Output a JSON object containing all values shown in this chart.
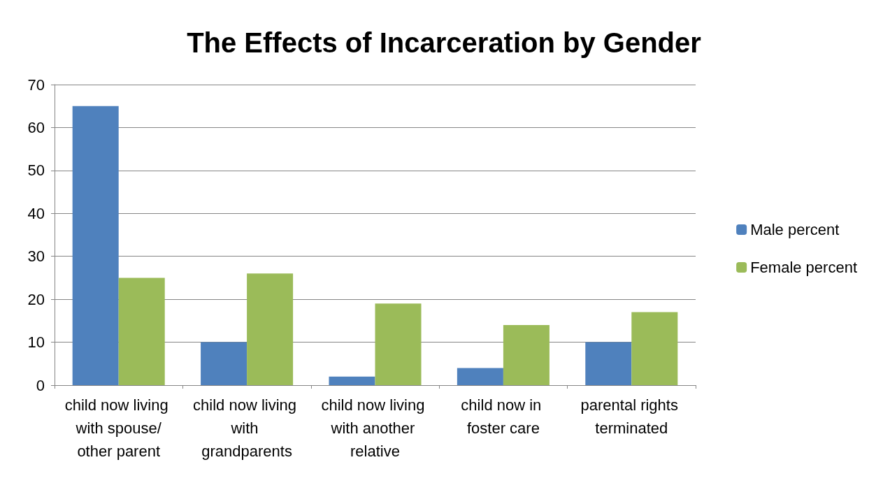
{
  "chart_data": {
    "type": "bar",
    "title": "The Effects of Incarceration by Gender",
    "categories": [
      "child now living with spouse/other parent",
      "child now living with grandparents",
      "child now living with another relative",
      "child now in foster care",
      "parental rights terminated"
    ],
    "series": [
      {
        "name": "Male percent",
        "color": "#4f81bd",
        "values": [
          65,
          10,
          2,
          4,
          10
        ]
      },
      {
        "name": "Female percent",
        "color": "#9bbb59",
        "values": [
          25,
          26,
          19,
          14,
          17
        ]
      }
    ],
    "ylim": [
      0,
      70
    ],
    "yticks": [
      0,
      10,
      20,
      30,
      40,
      50,
      60,
      70
    ],
    "grid": "y",
    "legend": "right"
  }
}
